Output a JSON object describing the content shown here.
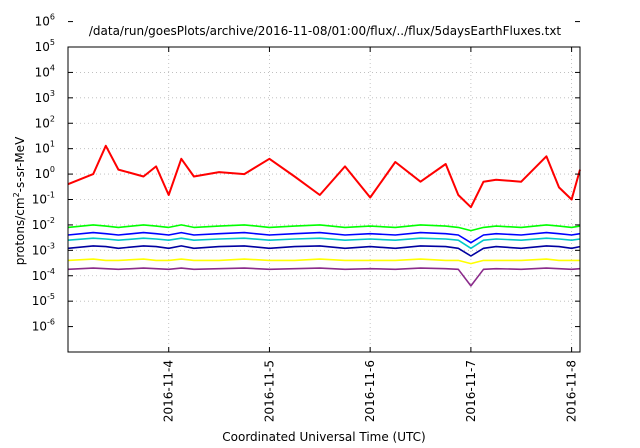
{
  "chart_data": {
    "type": "line",
    "title": "/data/run/goesPlots/archive/2016-11-08/01:00/flux/../flux/5daysEarthFluxes.txt",
    "xlabel": "Coordinated Universal Time (UTC)",
    "ylabel": "protons/cm²-s-sr-MeV",
    "ylabel_parts": {
      "base": "protons/cm",
      "sup": "2",
      "rest": "-s-sr-MeV"
    },
    "x_range": [
      "2016-11-03T00:00",
      "2016-11-08T02:00"
    ],
    "ylim": [
      1e-06,
      1000000.0
    ],
    "y_scale": "log",
    "grid": true,
    "legend": "none",
    "x_ticks": [
      "2016-11-4",
      "2016-11-5",
      "2016-11-6",
      "2016-11-7",
      "2016-11-8"
    ],
    "y_ticks": [
      {
        "base": "10",
        "exp": "-6"
      },
      {
        "base": "10",
        "exp": "-5"
      },
      {
        "base": "10",
        "exp": "-4"
      },
      {
        "base": "10",
        "exp": "-3"
      },
      {
        "base": "10",
        "exp": "-2"
      },
      {
        "base": "10",
        "exp": "-1"
      },
      {
        "base": "10",
        "exp": "0"
      },
      {
        "base": "10",
        "exp": "1"
      },
      {
        "base": "10",
        "exp": "2"
      },
      {
        "base": "10",
        "exp": "3"
      },
      {
        "base": "10",
        "exp": "4"
      },
      {
        "base": "10",
        "exp": "5"
      },
      {
        "base": "10",
        "exp": "6"
      }
    ],
    "x_points": [
      "2016-11-03T00:00",
      "2016-11-03T06:00",
      "2016-11-03T09:00",
      "2016-11-03T12:00",
      "2016-11-03T18:00",
      "2016-11-03T21:00",
      "2016-11-04T00:00",
      "2016-11-04T03:00",
      "2016-11-04T06:00",
      "2016-11-04T12:00",
      "2016-11-04T18:00",
      "2016-11-05T00:00",
      "2016-11-05T06:00",
      "2016-11-05T12:00",
      "2016-11-05T18:00",
      "2016-11-06T00:00",
      "2016-11-06T06:00",
      "2016-11-06T12:00",
      "2016-11-06T18:00",
      "2016-11-06T21:00",
      "2016-11-07T00:00",
      "2016-11-07T03:00",
      "2016-11-07T06:00",
      "2016-11-07T12:00",
      "2016-11-07T18:00",
      "2016-11-07T21:00",
      "2016-11-08T00:00",
      "2016-11-08T02:00"
    ],
    "series": [
      {
        "color": "#ff0000",
        "values": [
          4,
          10,
          130,
          15,
          8,
          20,
          1.5,
          40,
          8,
          12,
          10,
          40,
          8,
          1.5,
          20,
          1.2,
          30,
          5,
          25,
          1.5,
          0.5,
          5,
          6,
          5,
          50,
          3,
          1,
          15
        ]
      },
      {
        "color": "#00ff00",
        "values": [
          0.08,
          0.1,
          0.09,
          0.08,
          0.1,
          0.09,
          0.08,
          0.1,
          0.08,
          0.09,
          0.1,
          0.08,
          0.09,
          0.1,
          0.08,
          0.09,
          0.08,
          0.1,
          0.09,
          0.08,
          0.06,
          0.08,
          0.09,
          0.08,
          0.1,
          0.09,
          0.08,
          0.09
        ]
      },
      {
        "color": "#00c8c8",
        "values": [
          0.025,
          0.03,
          0.028,
          0.025,
          0.03,
          0.028,
          0.025,
          0.03,
          0.025,
          0.028,
          0.03,
          0.025,
          0.028,
          0.03,
          0.025,
          0.028,
          0.025,
          0.03,
          0.028,
          0.025,
          0.012,
          0.025,
          0.028,
          0.025,
          0.03,
          0.028,
          0.025,
          0.028
        ]
      },
      {
        "color": "#0000ff",
        "values": [
          0.04,
          0.05,
          0.045,
          0.04,
          0.05,
          0.045,
          0.04,
          0.05,
          0.04,
          0.045,
          0.05,
          0.04,
          0.045,
          0.05,
          0.04,
          0.045,
          0.04,
          0.05,
          0.045,
          0.04,
          0.02,
          0.04,
          0.045,
          0.04,
          0.05,
          0.045,
          0.04,
          0.045
        ]
      },
      {
        "color": "#0000a0",
        "values": [
          0.012,
          0.015,
          0.014,
          0.012,
          0.015,
          0.014,
          0.012,
          0.015,
          0.012,
          0.014,
          0.015,
          0.012,
          0.014,
          0.015,
          0.012,
          0.014,
          0.012,
          0.015,
          0.014,
          0.012,
          0.006,
          0.012,
          0.014,
          0.012,
          0.015,
          0.014,
          0.012,
          0.014
        ]
      },
      {
        "color": "#ffff00",
        "values": [
          0.004,
          0.0045,
          0.004,
          0.004,
          0.0045,
          0.004,
          0.004,
          0.0045,
          0.004,
          0.004,
          0.0045,
          0.004,
          0.004,
          0.0045,
          0.004,
          0.004,
          0.004,
          0.0045,
          0.004,
          0.004,
          0.003,
          0.004,
          0.004,
          0.004,
          0.0045,
          0.004,
          0.004,
          0.004
        ]
      },
      {
        "color": "#8b2b8b",
        "values": [
          0.0018,
          0.002,
          0.0019,
          0.0018,
          0.002,
          0.0019,
          0.0018,
          0.002,
          0.0018,
          0.0019,
          0.002,
          0.0018,
          0.0019,
          0.002,
          0.0018,
          0.0019,
          0.0018,
          0.002,
          0.0019,
          0.0018,
          0.0004,
          0.0018,
          0.0019,
          0.0018,
          0.002,
          0.0019,
          0.0018,
          0.0019
        ]
      }
    ]
  }
}
